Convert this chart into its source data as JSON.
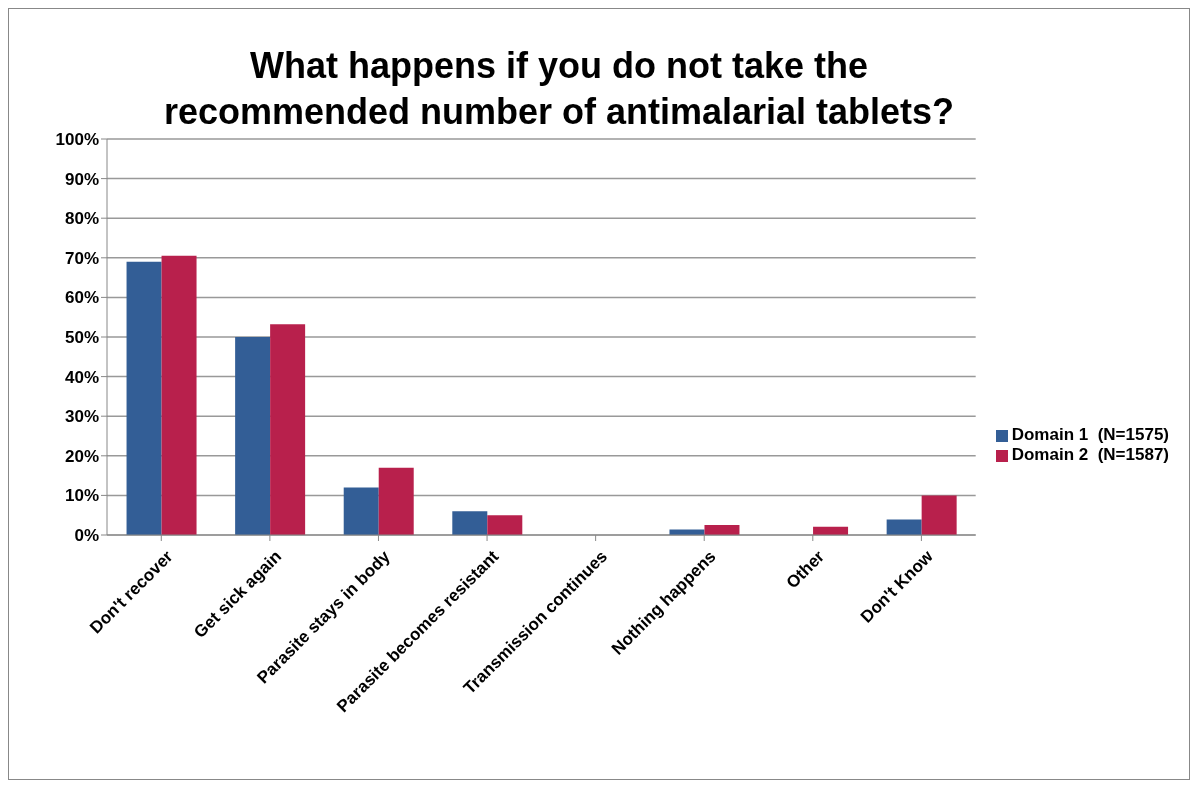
{
  "chart_data": {
    "type": "bar",
    "title": "What happens if you do not take the recommended number of antimalarial tablets?",
    "categories": [
      "Don't recover",
      "Get sick again",
      "Parasite stays in body",
      "Parasite becomes resistant",
      "Transmission continues",
      "Nothing happens",
      "Other",
      "Don't Know"
    ],
    "series": [
      {
        "name": "Domain 1  (N=1575)",
        "color": "#335e96",
        "values": [
          69,
          50,
          12,
          6,
          0,
          1.4,
          0,
          3.9
        ]
      },
      {
        "name": "Domain 2  (N=1587)",
        "color": "#b8204c",
        "values": [
          70.5,
          53.2,
          17,
          5,
          0,
          2.5,
          2.1,
          10
        ]
      }
    ],
    "ylim": [
      0,
      100
    ],
    "yticks": [
      {
        "value": 0,
        "label": "0%"
      },
      {
        "value": 10,
        "label": "10%"
      },
      {
        "value": 20,
        "label": "20%"
      },
      {
        "value": 30,
        "label": "30%"
      },
      {
        "value": 40,
        "label": "40%"
      },
      {
        "value": 50,
        "label": "50%"
      },
      {
        "value": 60,
        "label": "60%"
      },
      {
        "value": 70,
        "label": "70%"
      },
      {
        "value": 80,
        "label": "80%"
      },
      {
        "value": 90,
        "label": "90%"
      },
      {
        "value": 100,
        "label": "100%"
      }
    ],
    "grid": "y",
    "legend": "right"
  }
}
